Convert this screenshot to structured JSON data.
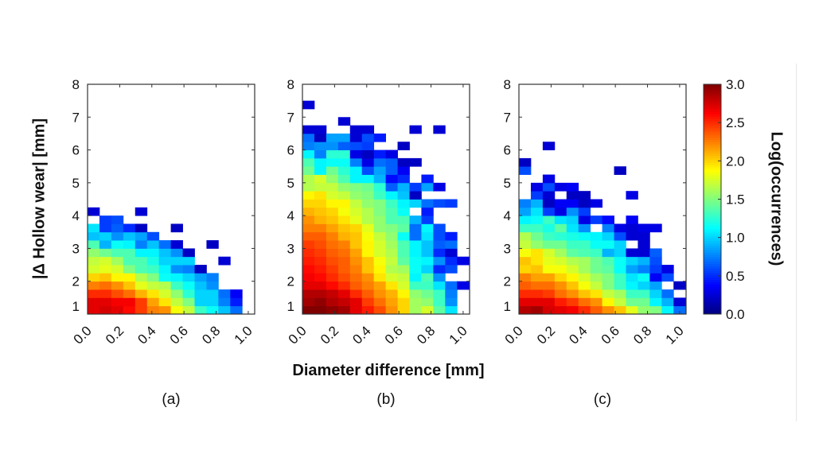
{
  "chart_data": {
    "type": "heatmap",
    "colormap": "jet",
    "xlabel": "Diameter difference [mm]",
    "ylabel": "|Δ Hollow wear| [mm]",
    "colorbar": {
      "label": "Log(occurrences)",
      "range": [
        0,
        3
      ],
      "ticks": [
        "0.0",
        "0.5",
        "1.0",
        "1.5",
        "2.0",
        "2.5",
        "3.0"
      ]
    },
    "xticks": [
      "0.0",
      "0.2",
      "0.4",
      "0.6",
      "0.8",
      "1.0"
    ],
    "yticks": [
      "1",
      "2",
      "3",
      "4",
      "5",
      "6",
      "7",
      "8"
    ],
    "xlim": [
      0,
      1.04
    ],
    "ylim": [
      1,
      8
    ],
    "x_bin_width": 0.074,
    "y_bin_width": 0.25,
    "y_start": 1,
    "panels": [
      {
        "label": "(a)",
        "rows": [
          [
            2.7,
            2.75,
            2.7,
            2.6,
            2.45,
            2.25,
            2.2,
            1.85,
            1.7,
            1.3,
            1.15,
            0.95,
            0.7
          ],
          [
            2.7,
            2.7,
            2.65,
            2.65,
            2.45,
            2.15,
            1.95,
            1.7,
            1.5,
            1.0,
            1.0,
            0.75,
            0.45
          ],
          [
            2.5,
            2.5,
            2.4,
            2.3,
            2.1,
            1.95,
            1.75,
            1.55,
            1.25,
            1.0,
            1.0,
            0.7,
            0.35
          ],
          [
            2.25,
            2.3,
            2.2,
            2.05,
            1.8,
            1.7,
            1.65,
            1.3,
            1.15,
            0.95,
            0.8,
            null,
            null
          ],
          [
            2.0,
            2.05,
            1.9,
            1.9,
            1.65,
            1.5,
            1.15,
            1.1,
            1.0,
            0.85,
            0.75,
            null,
            null
          ],
          [
            1.75,
            1.8,
            1.75,
            1.5,
            1.35,
            1.3,
            1.1,
            0.8,
            0.75,
            0.2,
            null,
            null,
            null
          ],
          [
            1.7,
            1.75,
            1.6,
            1.35,
            1.35,
            1.2,
            1.0,
            1.0,
            1.0,
            null,
            null,
            0.25,
            null
          ],
          [
            1.55,
            1.45,
            1.35,
            1.35,
            1.1,
            1.1,
            0.95,
            0.8,
            0.2,
            null,
            null,
            null,
            null
          ],
          [
            1.35,
            0.9,
            1.15,
            1.1,
            0.75,
            0.95,
            0.7,
            0.25,
            null,
            null,
            0.2,
            null,
            null
          ],
          [
            0.95,
            1.0,
            0.8,
            0.95,
            0.85,
            0.6,
            null,
            null,
            null,
            null,
            null,
            null,
            null
          ],
          [
            1.05,
            0.55,
            0.65,
            0.5,
            0.2,
            null,
            null,
            0.2,
            null,
            null,
            null,
            null,
            null
          ],
          [
            null,
            0.55,
            0.6,
            null,
            null,
            null,
            null,
            null,
            null,
            null,
            null,
            null,
            null
          ],
          [
            0.25,
            null,
            null,
            null,
            0.25,
            null,
            null,
            null,
            null,
            null,
            null,
            null,
            null
          ]
        ]
      },
      {
        "label": "(b)",
        "rows": [
          [
            3.0,
            3.0,
            2.95,
            2.9,
            2.7,
            2.55,
            2.4,
            2.2,
            2.0,
            1.6,
            1.75,
            1.4,
            1.05
          ],
          [
            2.9,
            2.95,
            2.85,
            2.8,
            2.7,
            2.45,
            2.3,
            2.15,
            2.0,
            1.6,
            1.55,
            1.3,
            0.8
          ],
          [
            2.85,
            2.85,
            2.8,
            2.7,
            2.5,
            2.35,
            2.2,
            2.1,
            1.9,
            1.55,
            1.45,
            1.3,
            0.75
          ],
          [
            2.7,
            2.7,
            2.6,
            2.5,
            2.35,
            2.25,
            2.15,
            1.95,
            1.75,
            1.3,
            1.3,
            1.05,
            0.7,
            0.3
          ],
          [
            2.65,
            2.6,
            2.5,
            2.4,
            2.3,
            2.2,
            1.95,
            1.75,
            1.7,
            1.1,
            1.35,
            0.8,
            null
          ],
          [
            2.6,
            2.55,
            2.45,
            2.35,
            2.25,
            2.05,
            1.9,
            1.65,
            1.6,
            1.15,
            1.0,
            0.5,
            0.6
          ],
          [
            2.55,
            2.5,
            2.4,
            2.35,
            2.2,
            2.05,
            1.85,
            1.7,
            1.4,
            1.15,
            1.1,
            0.8,
            0.5,
            0.3
          ],
          [
            2.5,
            2.45,
            2.35,
            2.3,
            2.15,
            1.9,
            1.75,
            1.65,
            1.35,
            1.1,
            0.95,
            0.5,
            0.25
          ],
          [
            2.45,
            2.4,
            2.3,
            2.25,
            2.05,
            1.9,
            1.75,
            1.6,
            1.35,
            1.1,
            0.95,
            0.65,
            0.7
          ],
          [
            2.35,
            2.35,
            2.25,
            2.1,
            2.05,
            1.85,
            1.7,
            1.55,
            1.15,
            0.7,
            1.05,
            0.6,
            0.45
          ],
          [
            2.25,
            2.25,
            2.15,
            2.05,
            2.0,
            1.8,
            1.55,
            1.5,
            1.4,
            0.7,
            1.1,
            0.6
          ],
          [
            2.2,
            2.1,
            2.05,
            1.95,
            1.8,
            1.65,
            1.55,
            1.35,
            1.35,
            0.9,
            0.55
          ],
          [
            2.1,
            2.05,
            2.0,
            1.85,
            1.75,
            1.65,
            1.5,
            1.35,
            1.15,
            null,
            0.45
          ],
          [
            2.0,
            2.0,
            1.9,
            1.9,
            1.7,
            1.55,
            1.5,
            1.3,
            1.1,
            1.0,
            0.7,
            0.6,
            0.55
          ],
          [
            1.9,
            1.95,
            1.75,
            1.7,
            1.55,
            1.5,
            1.3,
            1.1,
            0.95,
            0.2
          ],
          [
            1.65,
            1.7,
            1.7,
            1.55,
            1.5,
            1.45,
            1.25,
            0.65,
            0.9,
            0.55,
            0.85,
            0.3
          ],
          [
            1.65,
            1.75,
            1.55,
            1.35,
            1.1,
            1.1,
            0.9,
            0.4,
            0.5,
            null,
            0.45
          ],
          [
            1.45,
            1.1,
            1.45,
            1.25,
            1.1,
            0.6,
            0.85,
            0.65,
            0.35
          ],
          [
            1.35,
            1.1,
            1.15,
            1.15,
            0.75,
            0.3,
            0.7,
            0.65,
            0.2,
            0.2
          ],
          [
            1.1,
            0.75,
            1.25,
            1.25,
            0.3,
            0.2,
            0.45,
            0.3
          ],
          [
            0.75,
            0.8,
            0.8,
            0.65,
            0.6,
            0.55,
            null,
            null,
            0.2
          ],
          [
            0.7,
            0.2,
            0.85,
            0.85,
            0.25,
            0.6,
            0.45
          ],
          [
            0.25,
            0.25,
            null,
            null,
            0.25,
            0.25,
            null,
            null,
            null,
            0.25,
            null,
            0.25
          ],
          [
            null,
            null,
            null,
            0.25
          ],
          [],
          [
            0.25
          ]
        ]
      },
      {
        "label": "(c)",
        "rows": [
          [
            2.85,
            2.9,
            2.75,
            2.7,
            2.65,
            2.5,
            2.35,
            2.2,
            2.05,
            1.8,
            1.55,
            1.5,
            1.1,
            0.7
          ],
          [
            2.7,
            2.7,
            2.7,
            2.55,
            2.45,
            2.3,
            2.2,
            1.9,
            1.7,
            1.45,
            1.45,
            1.1,
            0.9,
            0.25
          ],
          [
            2.5,
            2.5,
            2.45,
            2.3,
            2.2,
            2.05,
            1.95,
            1.7,
            1.6,
            1.3,
            1.3,
            1.0,
            0.7
          ],
          [
            2.35,
            2.3,
            2.3,
            2.2,
            2.05,
            1.85,
            1.7,
            1.5,
            1.3,
            1.1,
            1.0,
            0.85,
            null,
            0.2
          ],
          [
            2.25,
            2.15,
            2.15,
            2.0,
            1.9,
            1.75,
            1.6,
            1.5,
            1.3,
            1.05,
            1.15,
            0.35,
            0.6
          ],
          [
            2.0,
            2.05,
            1.85,
            1.85,
            1.75,
            1.6,
            1.45,
            1.4,
            1.15,
            0.85,
            0.75,
            0.55,
            0.3
          ],
          [
            2.05,
            1.95,
            1.8,
            1.75,
            1.65,
            1.6,
            1.45,
            1.35,
            1.15,
            1.0,
            0.9,
            0.6
          ],
          [
            1.85,
            1.95,
            1.75,
            1.6,
            1.4,
            1.35,
            1.3,
            0.9,
            1.0,
            0.25,
            0.25,
            0.65
          ],
          [
            1.7,
            1.55,
            1.45,
            1.45,
            1.3,
            1.3,
            1.15,
            1.15,
            1.0,
            null,
            0.25
          ],
          [
            1.65,
            1.45,
            1.3,
            1.25,
            1.2,
            1.15,
            1.1,
            1.0,
            0.6,
            0.25,
            0.25
          ],
          [
            1.3,
            1.3,
            1.2,
            1.4,
            1.05,
            0.8,
            null,
            0.75,
            0.3,
            0.25,
            0.3,
            0.3
          ],
          [
            1.1,
            1.15,
            1.3,
            1.05,
            1.0,
            0.3,
            0.55,
            0.4,
            null,
            0.35
          ],
          [
            0.85,
            1.05,
            0.55,
            0.3,
            0.8,
            0.55
          ],
          [
            0.75,
            0.9,
            0.2,
            0.35,
            0.35,
            0.2,
            0.3
          ],
          [
            null,
            0.55,
            0.25,
            null,
            0.2,
            0.2,
            null,
            null,
            null,
            0.3
          ],
          [
            null,
            0.3,
            0.6,
            0.3,
            0.35
          ],
          [
            null,
            null,
            0.3
          ],
          [
            0.6,
            null,
            null,
            null,
            null,
            null,
            null,
            null,
            0.2
          ],
          [
            0.2
          ],
          [],
          [
            null,
            null,
            0.25
          ]
        ]
      }
    ]
  }
}
